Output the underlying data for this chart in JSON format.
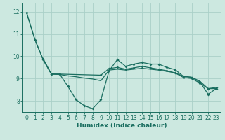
{
  "xlabel": "Humidex (Indice chaleur)",
  "bg_color": "#cce8e0",
  "grid_color": "#aad0c8",
  "line_color": "#1a6e60",
  "xlim": [
    -0.5,
    23.5
  ],
  "ylim": [
    7.5,
    12.4
  ],
  "yticks": [
    8,
    9,
    10,
    11,
    12
  ],
  "xticks": [
    0,
    1,
    2,
    3,
    4,
    5,
    6,
    7,
    8,
    9,
    10,
    11,
    12,
    13,
    14,
    15,
    16,
    17,
    18,
    19,
    20,
    21,
    22,
    23
  ],
  "line1_x": [
    0,
    1,
    2,
    3,
    4,
    5,
    6,
    7,
    8,
    9,
    10,
    11,
    12,
    13,
    14,
    15,
    16,
    17,
    18,
    19,
    20,
    21,
    22,
    23
  ],
  "line1_y": [
    11.95,
    10.75,
    9.85,
    9.2,
    9.2,
    8.65,
    8.05,
    7.78,
    7.65,
    8.05,
    9.35,
    9.85,
    9.55,
    9.65,
    9.72,
    9.65,
    9.65,
    9.5,
    9.4,
    9.1,
    9.05,
    8.85,
    8.3,
    8.55
  ],
  "line2_x": [
    2,
    3,
    4,
    9,
    10,
    11,
    12,
    13,
    14,
    15,
    16,
    17,
    18,
    19,
    20,
    21,
    22,
    23
  ],
  "line2_y": [
    9.9,
    9.2,
    9.2,
    9.15,
    9.45,
    9.5,
    9.42,
    9.48,
    9.55,
    9.48,
    9.42,
    9.35,
    9.25,
    9.05,
    9.0,
    8.8,
    8.55,
    8.6
  ],
  "line3_x": [
    0,
    1,
    2,
    3,
    4,
    5,
    6,
    7,
    8,
    9,
    10,
    11,
    12,
    13,
    14,
    15,
    16,
    17,
    18,
    19,
    20,
    21,
    22,
    23
  ],
  "line3_y": [
    11.95,
    10.75,
    9.85,
    9.2,
    9.18,
    9.12,
    9.08,
    9.02,
    8.98,
    8.9,
    9.38,
    9.42,
    9.38,
    9.42,
    9.46,
    9.42,
    9.38,
    9.32,
    9.26,
    9.1,
    9.06,
    8.88,
    8.55,
    8.55
  ]
}
